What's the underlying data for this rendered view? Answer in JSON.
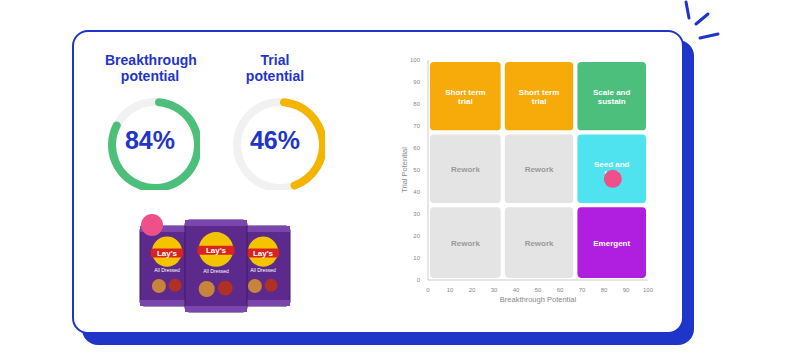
{
  "gauges": [
    {
      "title": "Breakthrough potential",
      "value": 84,
      "label": "84%",
      "color": "#4cc07a",
      "range": [
        0,
        100
      ]
    },
    {
      "title": "Trial potential",
      "value": 46,
      "label": "46%",
      "color": "#f5b400",
      "range": [
        0,
        100
      ]
    }
  ],
  "product_image": {
    "brand": "Lay's",
    "flavor": "All Dressed"
  },
  "chart_data": {
    "type": "scatter",
    "x_label": "Breakthrough Potential",
    "y_label": "Trial Potential",
    "xlim": [
      0,
      100
    ],
    "ylim": [
      0,
      100
    ],
    "xticks": [
      0,
      10,
      20,
      30,
      40,
      50,
      60,
      70,
      80,
      90,
      100
    ],
    "yticks": [
      0,
      10,
      20,
      30,
      40,
      50,
      60,
      70,
      80,
      90,
      100
    ],
    "x": [
      84
    ],
    "values": [
      46
    ],
    "color": "#f0508a",
    "zones": [
      {
        "label": "Short term trial",
        "x": [
          0,
          34
        ],
        "y": [
          67,
          100
        ],
        "color": "#f7ab0a"
      },
      {
        "label": "Short term trial",
        "x": [
          34,
          67
        ],
        "y": [
          67,
          100
        ],
        "color": "#f7ab0a"
      },
      {
        "label": "Scale and sustain",
        "x": [
          67,
          100
        ],
        "y": [
          67,
          100
        ],
        "color": "#4cbf7c"
      },
      {
        "label": "Rework",
        "x": [
          0,
          34
        ],
        "y": [
          34,
          67
        ],
        "color": "#e4e4e4"
      },
      {
        "label": "Rework",
        "x": [
          34,
          67
        ],
        "y": [
          34,
          67
        ],
        "color": "#e4e4e4"
      },
      {
        "label": "Seed and test",
        "x": [
          67,
          100
        ],
        "y": [
          34,
          67
        ],
        "color": "#4fe3f0"
      },
      {
        "label": "Rework",
        "x": [
          0,
          34
        ],
        "y": [
          0,
          34
        ],
        "color": "#e4e4e4"
      },
      {
        "label": "Rework",
        "x": [
          34,
          67
        ],
        "y": [
          0,
          34
        ],
        "color": "#e4e4e4"
      },
      {
        "label": "Emergent",
        "x": [
          67,
          100
        ],
        "y": [
          0,
          34
        ],
        "color": "#b01ee0"
      }
    ]
  }
}
